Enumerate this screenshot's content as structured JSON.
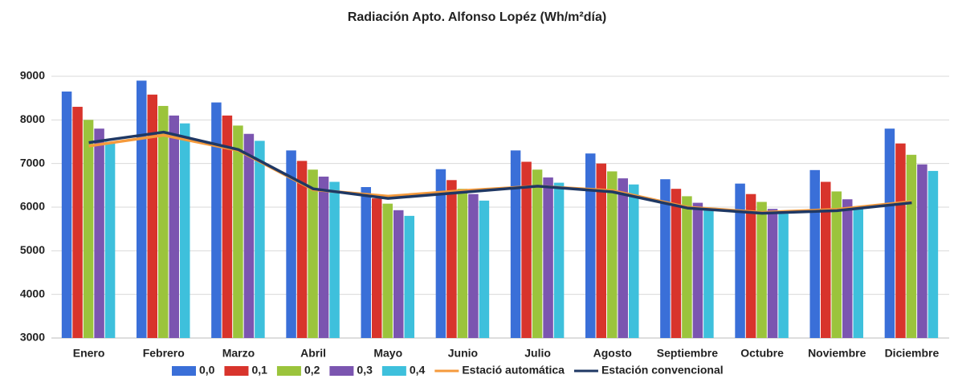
{
  "chart_data": {
    "type": "bar",
    "title": "Radiación Apto. Alfonso Lopéz (Wh/m²día)",
    "categories": [
      "Enero",
      "Febrero",
      "Marzo",
      "Abril",
      "Mayo",
      "Junio",
      "Julio",
      "Agosto",
      "Septiembre",
      "Octubre",
      "Noviembre",
      "Diciembre"
    ],
    "series": [
      {
        "name": "0,0",
        "color": "#3a6fd8",
        "values": [
          8650,
          8900,
          8400,
          7300,
          6460,
          6870,
          7300,
          7230,
          6640,
          6540,
          6850,
          7800
        ]
      },
      {
        "name": "0,1",
        "color": "#d8342c",
        "values": [
          8300,
          8580,
          8100,
          7060,
          6200,
          6620,
          7040,
          7000,
          6420,
          6300,
          6580,
          7460
        ]
      },
      {
        "name": "0,2",
        "color": "#9bc43c",
        "values": [
          8000,
          8320,
          7870,
          6860,
          6080,
          6420,
          6860,
          6820,
          6250,
          6120,
          6360,
          7200
        ]
      },
      {
        "name": "0,3",
        "color": "#7b55b0",
        "values": [
          7800,
          8100,
          7680,
          6700,
          5930,
          6300,
          6680,
          6660,
          6100,
          5960,
          6180,
          6980
        ]
      },
      {
        "name": "0,4",
        "color": "#3ec0dc",
        "values": [
          7500,
          7920,
          7520,
          6580,
          5800,
          6150,
          6560,
          6520,
          5980,
          5850,
          6020,
          6830
        ]
      },
      {
        "name": "Estació automática",
        "type": "line",
        "color": "#f59a3c",
        "values": [
          7400,
          7650,
          7300,
          6400,
          6250,
          6380,
          6480,
          6380,
          6000,
          5880,
          5950,
          6130
        ]
      },
      {
        "name": "Estación convencional",
        "type": "line",
        "color": "#1f3864",
        "values": [
          7480,
          7720,
          7320,
          6420,
          6200,
          6340,
          6480,
          6350,
          5980,
          5860,
          5920,
          6100
        ]
      }
    ],
    "ylim": [
      3000,
      9000
    ],
    "yticks": [
      3000,
      4000,
      5000,
      6000,
      7000,
      8000,
      9000
    ],
    "grid": true,
    "legend": "bottom"
  }
}
